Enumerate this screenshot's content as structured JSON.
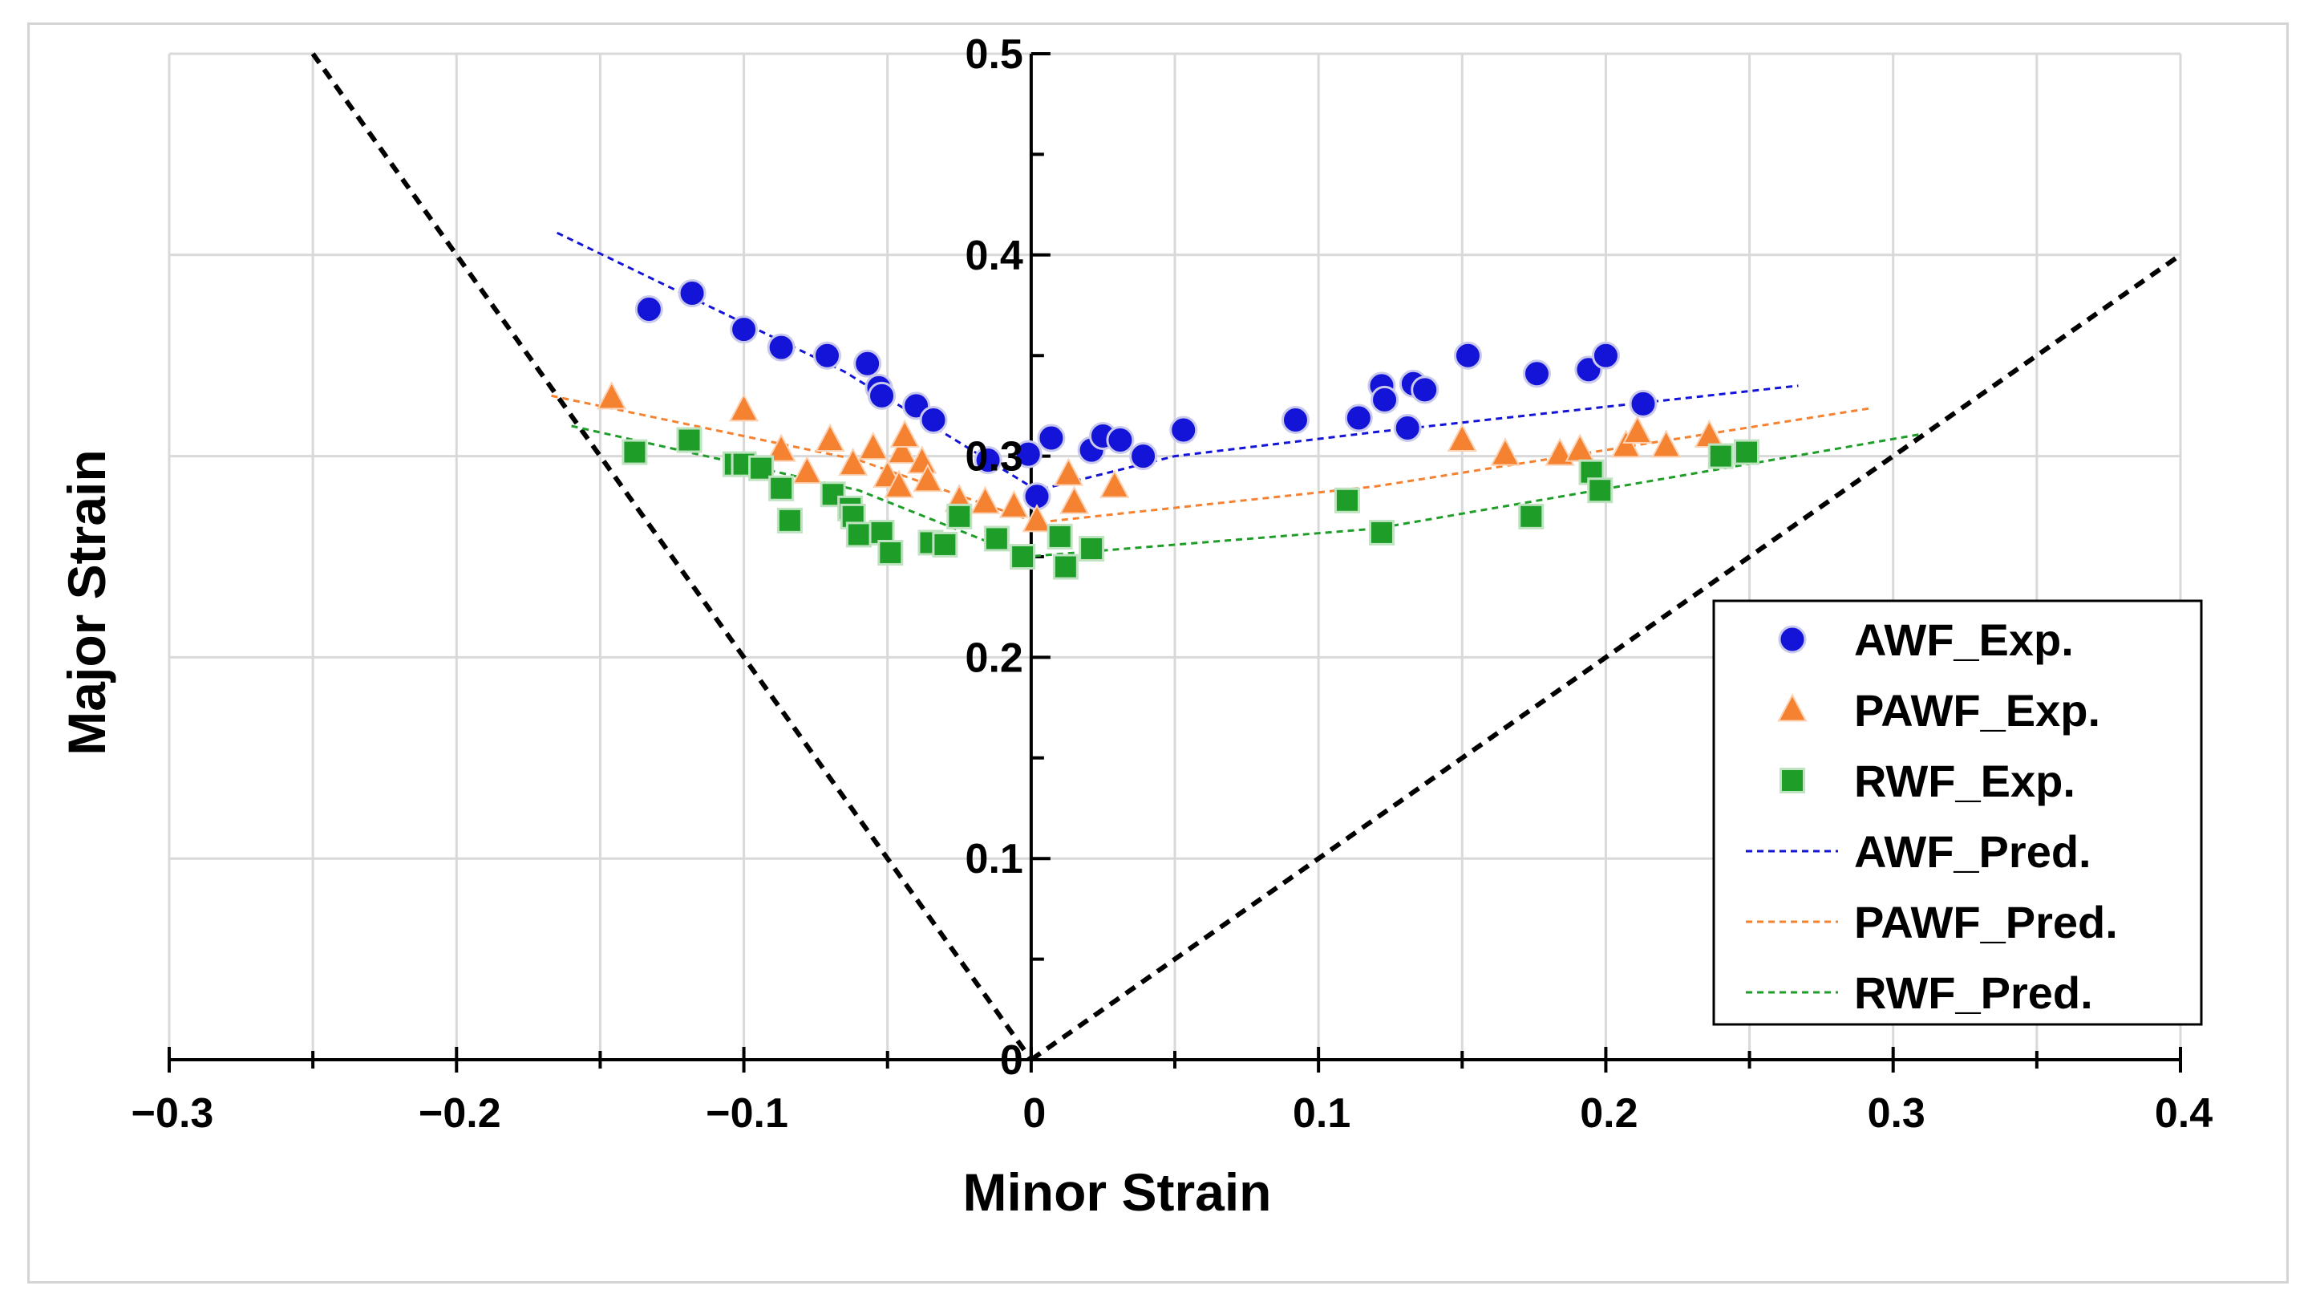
{
  "chart_data": {
    "type": "scatter",
    "title": "",
    "xlabel": "Minor Strain",
    "ylabel": "Major Strain",
    "xlim": [
      -0.3,
      0.4
    ],
    "ylim": [
      0,
      0.5
    ],
    "x_ticks": [
      -0.3,
      -0.2,
      -0.1,
      0,
      0.1,
      0.2,
      0.3,
      0.4
    ],
    "x_tick_labels": [
      "−0.3",
      "−0.2",
      "−0.1",
      "0",
      "0.1",
      "0.2",
      "0.3",
      "0.4"
    ],
    "y_ticks": [
      0,
      0.1,
      0.2,
      0.3,
      0.4,
      0.5
    ],
    "y_tick_labels": [
      "0",
      "0.1",
      "0.2",
      "0.3",
      "0.4",
      "0.5"
    ],
    "grid": true,
    "legend_position": "bottom-right",
    "colors": {
      "awf": "#1414d8",
      "pawf": "#f58231",
      "rwf": "#1e9e28",
      "limit": "#000000",
      "grid": "#d9d9d9"
    },
    "series": [
      {
        "name": "AWF_Exp.",
        "kind": "points",
        "marker": "circle",
        "color": "#1414d8",
        "points": [
          [
            -0.133,
            0.373
          ],
          [
            -0.118,
            0.381
          ],
          [
            -0.1,
            0.363
          ],
          [
            -0.087,
            0.354
          ],
          [
            -0.071,
            0.35
          ],
          [
            -0.057,
            0.346
          ],
          [
            -0.053,
            0.334
          ],
          [
            -0.052,
            0.33
          ],
          [
            -0.04,
            0.325
          ],
          [
            -0.034,
            0.318
          ],
          [
            -0.015,
            0.298
          ],
          [
            -0.001,
            0.301
          ],
          [
            0.002,
            0.28
          ],
          [
            0.007,
            0.309
          ],
          [
            0.021,
            0.303
          ],
          [
            0.025,
            0.31
          ],
          [
            0.031,
            0.308
          ],
          [
            0.039,
            0.3
          ],
          [
            0.053,
            0.313
          ],
          [
            0.092,
            0.318
          ],
          [
            0.114,
            0.319
          ],
          [
            0.122,
            0.335
          ],
          [
            0.123,
            0.328
          ],
          [
            0.131,
            0.314
          ],
          [
            0.133,
            0.336
          ],
          [
            0.137,
            0.333
          ],
          [
            0.152,
            0.35
          ],
          [
            0.176,
            0.341
          ],
          [
            0.194,
            0.343
          ],
          [
            0.2,
            0.35
          ],
          [
            0.213,
            0.326
          ]
        ]
      },
      {
        "name": "PAWF_Exp.",
        "kind": "points",
        "marker": "triangle",
        "color": "#f58231",
        "points": [
          [
            -0.146,
            0.329
          ],
          [
            -0.1,
            0.323
          ],
          [
            -0.087,
            0.303
          ],
          [
            -0.078,
            0.292
          ],
          [
            -0.07,
            0.308
          ],
          [
            -0.062,
            0.296
          ],
          [
            -0.055,
            0.304
          ],
          [
            -0.05,
            0.29
          ],
          [
            -0.046,
            0.285
          ],
          [
            -0.045,
            0.302
          ],
          [
            -0.044,
            0.31
          ],
          [
            -0.038,
            0.297
          ],
          [
            -0.036,
            0.288
          ],
          [
            -0.025,
            0.278
          ],
          [
            -0.016,
            0.277
          ],
          [
            -0.006,
            0.275
          ],
          [
            0.002,
            0.268
          ],
          [
            0.013,
            0.291
          ],
          [
            0.015,
            0.277
          ],
          [
            0.029,
            0.285
          ],
          [
            0.15,
            0.308
          ],
          [
            0.165,
            0.301
          ],
          [
            0.184,
            0.301
          ],
          [
            0.191,
            0.303
          ],
          [
            0.207,
            0.305
          ],
          [
            0.211,
            0.312
          ],
          [
            0.221,
            0.305
          ],
          [
            0.236,
            0.31
          ]
        ]
      },
      {
        "name": "RWF_Exp.",
        "kind": "points",
        "marker": "square",
        "color": "#1e9e28",
        "points": [
          [
            -0.138,
            0.302
          ],
          [
            -0.119,
            0.308
          ],
          [
            -0.103,
            0.296
          ],
          [
            -0.1,
            0.296
          ],
          [
            -0.094,
            0.294
          ],
          [
            -0.087,
            0.284
          ],
          [
            -0.084,
            0.268
          ],
          [
            -0.069,
            0.281
          ],
          [
            -0.063,
            0.274
          ],
          [
            -0.062,
            0.27
          ],
          [
            -0.06,
            0.261
          ],
          [
            -0.052,
            0.262
          ],
          [
            -0.049,
            0.252
          ],
          [
            -0.035,
            0.257
          ],
          [
            -0.03,
            0.256
          ],
          [
            -0.025,
            0.27
          ],
          [
            -0.012,
            0.259
          ],
          [
            -0.003,
            0.25
          ],
          [
            0.01,
            0.26
          ],
          [
            0.012,
            0.245
          ],
          [
            0.021,
            0.254
          ],
          [
            0.11,
            0.278
          ],
          [
            0.122,
            0.262
          ],
          [
            0.174,
            0.27
          ],
          [
            0.195,
            0.292
          ],
          [
            0.198,
            0.283
          ],
          [
            0.24,
            0.3
          ],
          [
            0.249,
            0.302
          ]
        ]
      },
      {
        "name": "AWF_Pred.",
        "kind": "line",
        "color": "#1414d8",
        "points": [
          [
            -0.165,
            0.411
          ],
          [
            -0.065,
            0.342
          ],
          [
            0.002,
            0.283
          ],
          [
            0.05,
            0.3
          ],
          [
            0.12,
            0.312
          ],
          [
            0.267,
            0.335
          ]
        ]
      },
      {
        "name": "PAWF_Pred.",
        "kind": "line",
        "color": "#f58231",
        "points": [
          [
            -0.167,
            0.33
          ],
          [
            -0.06,
            0.298
          ],
          [
            0.002,
            0.267
          ],
          [
            0.12,
            0.285
          ],
          [
            0.293,
            0.324
          ]
        ]
      },
      {
        "name": "RWF_Pred.",
        "kind": "line",
        "color": "#1e9e28",
        "points": [
          [
            -0.16,
            0.315
          ],
          [
            -0.06,
            0.283
          ],
          [
            -0.002,
            0.25
          ],
          [
            0.12,
            0.264
          ],
          [
            0.31,
            0.311
          ]
        ]
      }
    ],
    "limit_lines": [
      {
        "name": "left-boundary",
        "points": [
          [
            -0.25,
            0.5
          ],
          [
            0,
            0
          ]
        ]
      },
      {
        "name": "right-boundary",
        "points": [
          [
            0,
            0
          ],
          [
            0.4,
            0.4
          ]
        ]
      }
    ]
  }
}
